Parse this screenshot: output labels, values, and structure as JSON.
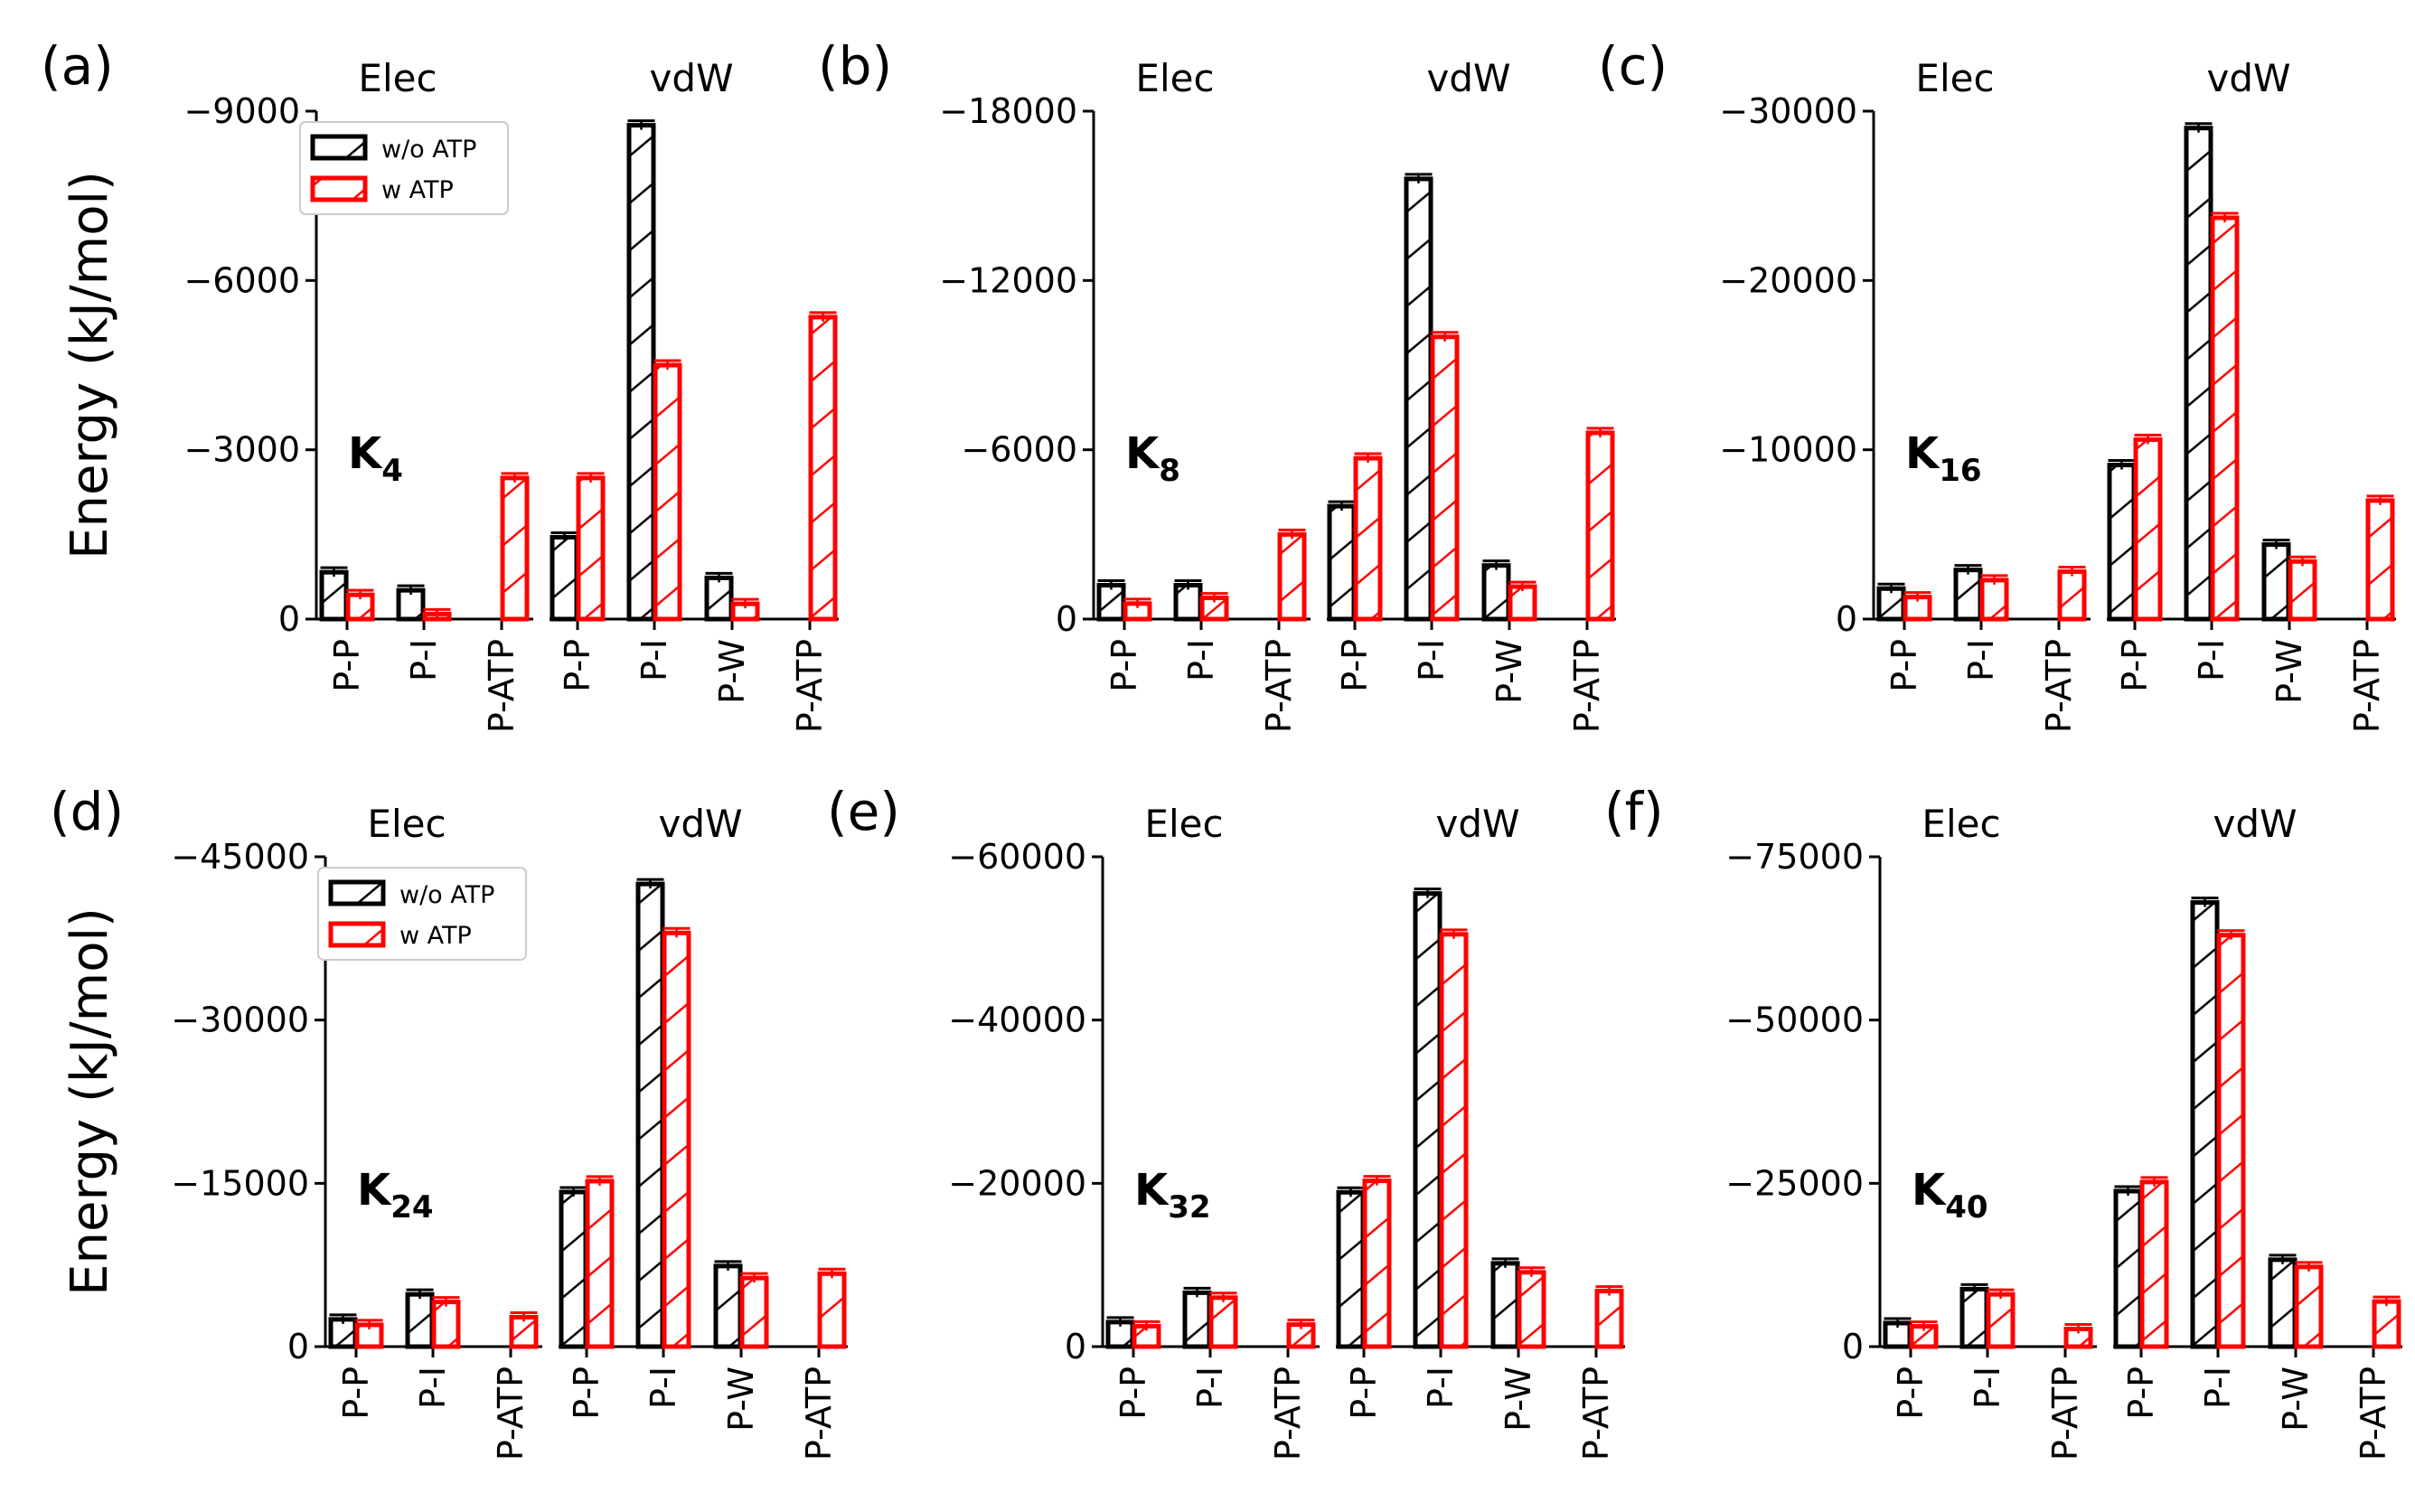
{
  "colors": {
    "without_atp": "#000000",
    "with_atp": "#ff0000"
  },
  "chart_data": [
    {
      "type": "bar",
      "panel": "(a)",
      "system": {
        "base": "K",
        "sub": "4"
      },
      "ylabel": "Energy (kJ/mol)",
      "ylim": [
        0,
        -9000
      ],
      "yticks": [
        "0",
        "−3000",
        "−6000",
        "−9000"
      ],
      "legend": {
        "placement": "top-left",
        "entries": [
          "w/o ATP",
          "w ATP"
        ]
      },
      "groups": [
        {
          "title": "Elec",
          "categories": [
            "P-P",
            "P-I",
            "P-ATP"
          ],
          "series": [
            {
              "name": "w/o ATP",
              "values": [
                -830,
                -510,
                null
              ]
            },
            {
              "name": "w ATP",
              "values": [
                -430,
                -90,
                -2500
              ]
            }
          ]
        },
        {
          "title": "vdW",
          "categories": [
            "P-P",
            "P-I",
            "P-W",
            "P-ATP"
          ],
          "series": [
            {
              "name": "w/o ATP",
              "values": [
                -1450,
                -8750,
                -730,
                null
              ]
            },
            {
              "name": "w ATP",
              "values": [
                -2500,
                -4500,
                -270,
                -5350
              ]
            }
          ]
        }
      ]
    },
    {
      "type": "bar",
      "panel": "(b)",
      "system": {
        "base": "K",
        "sub": "8"
      },
      "ylim": [
        0,
        -18000
      ],
      "yticks": [
        "0",
        "−6000",
        "−12000",
        "−18000"
      ],
      "groups": [
        {
          "title": "Elec",
          "categories": [
            "P-P",
            "P-I",
            "P-ATP"
          ],
          "series": [
            {
              "name": "w/o ATP",
              "values": [
                -1200,
                -1200,
                null
              ]
            },
            {
              "name": "w ATP",
              "values": [
                -550,
                -750,
                -3000
              ]
            }
          ]
        },
        {
          "title": "vdW",
          "categories": [
            "P-P",
            "P-I",
            "P-W",
            "P-ATP"
          ],
          "series": [
            {
              "name": "w/o ATP",
              "values": [
                -4000,
                -15600,
                -1900,
                null
              ]
            },
            {
              "name": "w ATP",
              "values": [
                -5700,
                -10000,
                -1150,
                -6600
              ]
            }
          ]
        }
      ]
    },
    {
      "type": "bar",
      "panel": "(c)",
      "system": {
        "base": "K",
        "sub": "16"
      },
      "ylim": [
        0,
        -30000
      ],
      "yticks": [
        "0",
        "−10000",
        "−20000",
        "−30000"
      ],
      "groups": [
        {
          "title": "Elec",
          "categories": [
            "P-P",
            "P-I",
            "P-ATP"
          ],
          "series": [
            {
              "name": "w/o ATP",
              "values": [
                -1800,
                -2900,
                null
              ]
            },
            {
              "name": "w ATP",
              "values": [
                -1300,
                -2300,
                -2800
              ]
            }
          ]
        },
        {
          "title": "vdW",
          "categories": [
            "P-P",
            "P-I",
            "P-W",
            "P-ATP"
          ],
          "series": [
            {
              "name": "w/o ATP",
              "values": [
                -9100,
                -29000,
                -4400,
                null
              ]
            },
            {
              "name": "w ATP",
              "values": [
                -10600,
                -23700,
                -3400,
                -7000
              ]
            }
          ]
        }
      ]
    },
    {
      "type": "bar",
      "panel": "(d)",
      "system": {
        "base": "K",
        "sub": "24"
      },
      "ylabel": "Energy (kJ/mol)",
      "ylim": [
        0,
        -45000
      ],
      "yticks": [
        "0",
        "−15000",
        "−30000",
        "−45000"
      ],
      "legend": {
        "placement": "top-left",
        "entries": [
          "w/o ATP",
          "w ATP"
        ]
      },
      "groups": [
        {
          "title": "Elec",
          "categories": [
            "P-P",
            "P-I",
            "P-ATP"
          ],
          "series": [
            {
              "name": "w/o ATP",
              "values": [
                -2500,
                -4800,
                null
              ]
            },
            {
              "name": "w ATP",
              "values": [
                -2000,
                -4100,
                -2700
              ]
            }
          ]
        },
        {
          "title": "vdW",
          "categories": [
            "P-P",
            "P-I",
            "P-W",
            "P-ATP"
          ],
          "series": [
            {
              "name": "w/o ATP",
              "values": [
                -14200,
                -42500,
                -7400,
                null
              ]
            },
            {
              "name": "w ATP",
              "values": [
                -15200,
                -38000,
                -6300,
                -6700
              ]
            }
          ]
        }
      ]
    },
    {
      "type": "bar",
      "panel": "(e)",
      "system": {
        "base": "K",
        "sub": "32"
      },
      "ylim": [
        0,
        -60000
      ],
      "yticks": [
        "0",
        "−20000",
        "−40000",
        "−60000"
      ],
      "groups": [
        {
          "title": "Elec",
          "categories": [
            "P-P",
            "P-I",
            "P-ATP"
          ],
          "series": [
            {
              "name": "w/o ATP",
              "values": [
                -3000,
                -6600,
                null
              ]
            },
            {
              "name": "w ATP",
              "values": [
                -2500,
                -6000,
                -2700
              ]
            }
          ]
        },
        {
          "title": "vdW",
          "categories": [
            "P-P",
            "P-I",
            "P-W",
            "P-ATP"
          ],
          "series": [
            {
              "name": "w/o ATP",
              "values": [
                -18900,
                -55500,
                -10200,
                null
              ]
            },
            {
              "name": "w ATP",
              "values": [
                -20300,
                -50500,
                -9100,
                -6800
              ]
            }
          ]
        }
      ]
    },
    {
      "type": "bar",
      "panel": "(f)",
      "system": {
        "base": "K",
        "sub": "40"
      },
      "ylim": [
        0,
        -75000
      ],
      "yticks": [
        "0",
        "−25000",
        "−50000",
        "−75000"
      ],
      "groups": [
        {
          "title": "Elec",
          "categories": [
            "P-P",
            "P-I",
            "P-ATP"
          ],
          "series": [
            {
              "name": "w/o ATP",
              "values": [
                -3600,
                -8800,
                null
              ]
            },
            {
              "name": "w ATP",
              "values": [
                -3100,
                -8000,
                -2700
              ]
            }
          ]
        },
        {
          "title": "vdW",
          "categories": [
            "P-P",
            "P-I",
            "P-W",
            "P-ATP"
          ],
          "series": [
            {
              "name": "w/o ATP",
              "values": [
                -23800,
                -68000,
                -13300,
                null
              ]
            },
            {
              "name": "w ATP",
              "values": [
                -25200,
                -63000,
                -12200,
                -6900
              ]
            }
          ]
        }
      ]
    }
  ]
}
